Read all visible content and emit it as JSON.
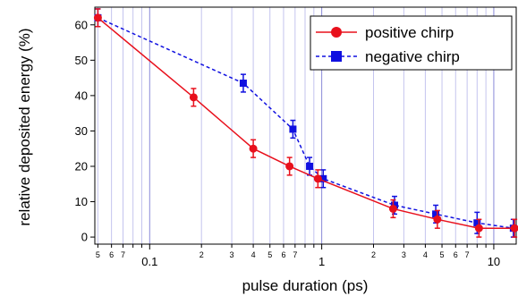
{
  "chart_data": {
    "type": "line",
    "title": "",
    "xlabel": "pulse duration (ps)",
    "ylabel": "relative deposited energy (%)",
    "xscale": "log",
    "xlim": [
      0.048,
      13.5
    ],
    "ylim": [
      -2,
      65
    ],
    "grid": "vertical, log minor",
    "legend": "top-right",
    "x_major_ticks": [
      {
        "value": 0.1,
        "label": "0.1"
      },
      {
        "value": 1,
        "label": "1"
      },
      {
        "value": 10,
        "label": "10"
      }
    ],
    "x_minor_ticks": [
      {
        "value": 0.05,
        "label": "5"
      },
      {
        "value": 0.06,
        "label": "6"
      },
      {
        "value": 0.07,
        "label": "7"
      },
      {
        "value": 0.2,
        "label": "2"
      },
      {
        "value": 0.3,
        "label": "3"
      },
      {
        "value": 0.4,
        "label": "4"
      },
      {
        "value": 0.5,
        "label": "5"
      },
      {
        "value": 0.6,
        "label": "6"
      },
      {
        "value": 0.7,
        "label": "7"
      },
      {
        "value": 2,
        "label": "2"
      },
      {
        "value": 3,
        "label": "3"
      },
      {
        "value": 4,
        "label": "4"
      },
      {
        "value": 5,
        "label": "5"
      },
      {
        "value": 6,
        "label": "6"
      },
      {
        "value": 7,
        "label": "7"
      }
    ],
    "x_unlabeled_minor_ticks": [
      0.08,
      0.09,
      0.8,
      0.9,
      8,
      9
    ],
    "y_ticks": [
      0,
      10,
      20,
      30,
      40,
      50,
      60
    ],
    "series": [
      {
        "name": "positive chirp",
        "color": "#e8101c",
        "marker": "circle",
        "line": "solid",
        "x": [
          0.05,
          0.18,
          0.4,
          0.65,
          0.95,
          2.6,
          4.7,
          8.2,
          13.2
        ],
        "y": [
          62,
          39.5,
          25,
          20,
          16.5,
          8,
          5,
          2.5,
          2.5
        ],
        "err": [
          2.5,
          2.5,
          2.5,
          2.5,
          2.5,
          2.5,
          2.5,
          2.5,
          2.5
        ]
      },
      {
        "name": "negative chirp",
        "color": "#1010e0",
        "marker": "square",
        "line": "dashed",
        "x": [
          0.05,
          0.35,
          0.68,
          0.85,
          1.02,
          2.65,
          4.6,
          8.0,
          13.0
        ],
        "y": [
          62,
          43.5,
          30.5,
          20,
          16.5,
          9,
          6.5,
          4,
          2.5
        ],
        "err": [
          2.5,
          2.5,
          2.5,
          2.5,
          2.5,
          2.5,
          2.5,
          3,
          2.5
        ]
      }
    ]
  }
}
